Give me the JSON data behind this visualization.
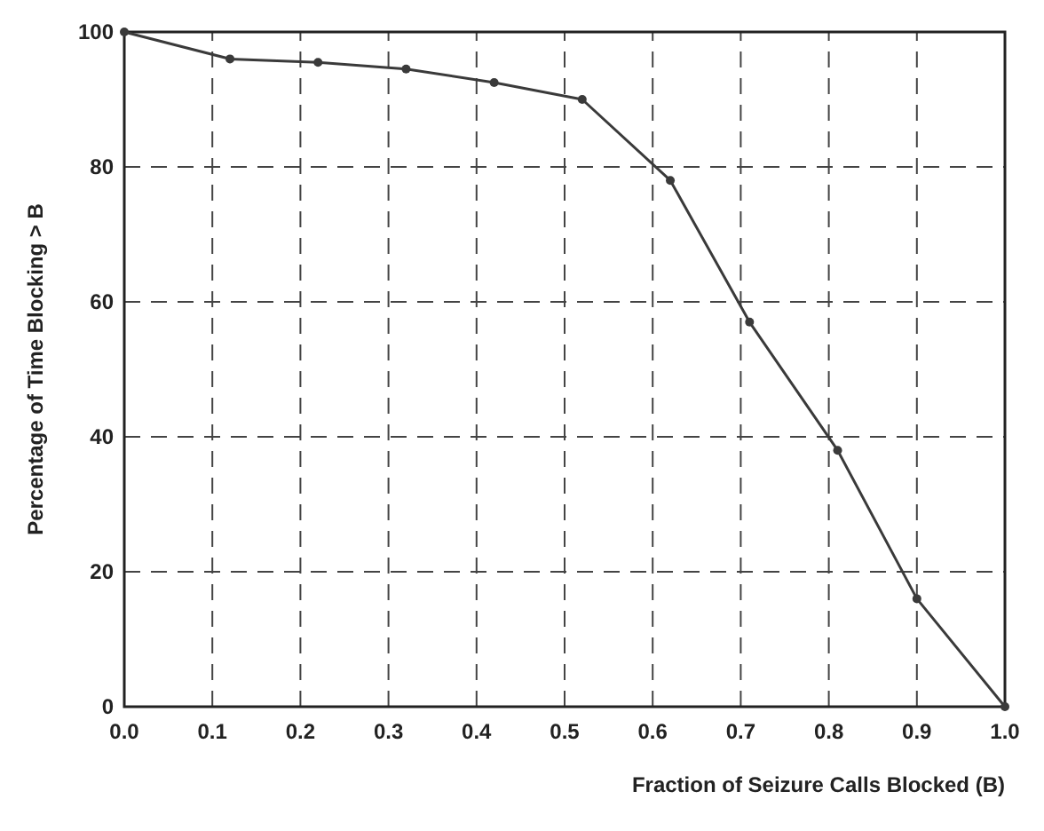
{
  "chart_data": {
    "type": "line",
    "xlabel": "Fraction of Seizure Calls Blocked (B)",
    "ylabel": "Percentage of Time Blocking > B",
    "x": [
      0,
      0.12,
      0.22,
      0.32,
      0.42,
      0.52,
      0.62,
      0.71,
      0.81,
      0.9,
      1.0
    ],
    "series": [
      {
        "color": "#3a3a3a",
        "values": [
          100,
          96,
          95.5,
          94.5,
          92.5,
          90,
          78,
          57,
          38,
          16,
          0
        ]
      }
    ],
    "xlim": [
      0,
      1
    ],
    "xticks": [
      {
        "value": 0,
        "label": "0.0"
      },
      0.1,
      0.2,
      0.3,
      0.4,
      0.5,
      0.6,
      0.7,
      0.8,
      0.9,
      {
        "value": 1,
        "label": "1.0"
      }
    ],
    "ylim": [
      0,
      100
    ],
    "yticks": [
      0,
      20,
      40,
      60,
      80,
      100
    ],
    "grid": true,
    "marker": "circle",
    "line_style": "solid"
  }
}
